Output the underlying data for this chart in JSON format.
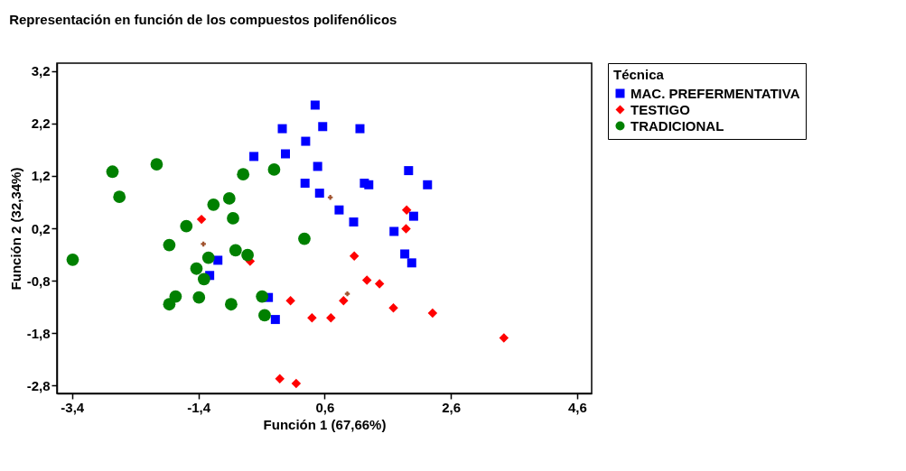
{
  "chart_data": {
    "type": "scatter",
    "title": "Representación en función de los compuestos polifenólicos",
    "xlabel": "Función 1 (67,66%)",
    "ylabel": "Función 2 (32,34%)",
    "legend_title": "Técnica",
    "legend": "right",
    "grid": false,
    "xlim": [
      -3.64,
      4.83
    ],
    "ylim": [
      -2.95,
      3.35
    ],
    "xticks": [
      {
        "value": -3.4,
        "label": "-3,4"
      },
      {
        "value": -1.4,
        "label": "-1,4"
      },
      {
        "value": 0.6,
        "label": "0,6"
      },
      {
        "value": 2.6,
        "label": "2,6"
      },
      {
        "value": 4.6,
        "label": "4,6"
      }
    ],
    "yticks": [
      {
        "value": -2.8,
        "label": "-2,8"
      },
      {
        "value": -1.8,
        "label": "-1,8"
      },
      {
        "value": -0.8,
        "label": "-0,8"
      },
      {
        "value": 0.2,
        "label": "0,2"
      },
      {
        "value": 1.2,
        "label": "1,2"
      },
      {
        "value": 2.2,
        "label": "2,2"
      },
      {
        "value": 3.2,
        "label": "3,2"
      }
    ],
    "series": [
      {
        "name": "MAC. PREFERMENTATIVA",
        "color": "#0000ff",
        "marker": "square",
        "x": [
          0.45,
          -0.07,
          0.57,
          1.16,
          0.3,
          -0.02,
          -0.52,
          0.49,
          0.29,
          1.23,
          1.3,
          0.52,
          1.93,
          2.23,
          0.83,
          1.06,
          1.7,
          2.01,
          1.87,
          1.98,
          -1.09,
          -1.22,
          -0.29,
          -0.18
        ],
        "values": [
          2.55,
          2.1,
          2.14,
          2.1,
          1.86,
          1.62,
          1.57,
          1.38,
          1.06,
          1.06,
          1.03,
          0.87,
          1.3,
          1.03,
          0.55,
          0.32,
          0.14,
          0.43,
          -0.29,
          -0.46,
          -0.41,
          -0.7,
          -1.12,
          -1.54
        ]
      },
      {
        "name": "TESTIGO",
        "color": "#ff0000",
        "marker": "diamond",
        "x": [
          -1.35,
          1.9,
          1.89,
          -0.58,
          0.06,
          0.4,
          -0.11,
          0.15,
          1.07,
          1.27,
          1.47,
          0.9,
          1.69,
          0.7,
          2.31,
          3.44
        ],
        "values": [
          0.37,
          0.55,
          0.19,
          -0.43,
          -1.18,
          -1.51,
          -2.67,
          -2.76,
          -0.33,
          -0.79,
          -0.86,
          -1.18,
          -1.32,
          -1.51,
          -1.42,
          -1.89
        ]
      },
      {
        "name": "TRADICIONAL",
        "color": "#008000",
        "marker": "circle",
        "x": [
          -2.76,
          -2.06,
          -2.65,
          -0.69,
          -0.2,
          -1.16,
          -0.91,
          -0.85,
          -1.59,
          0.28,
          -1.86,
          -3.39,
          -1.24,
          -0.81,
          -0.62,
          -1.43,
          -1.31,
          -1.76,
          -1.86,
          -1.39,
          -0.88,
          -0.39,
          -0.35
        ],
        "values": [
          1.28,
          1.42,
          0.8,
          1.23,
          1.32,
          0.65,
          0.77,
          0.39,
          0.24,
          0.0,
          -0.12,
          -0.4,
          -0.36,
          -0.22,
          -0.31,
          -0.57,
          -0.77,
          -1.1,
          -1.25,
          -1.12,
          -1.25,
          -1.1,
          -1.46
        ]
      },
      {
        "color": "#a0522d",
        "marker": "cross",
        "x": [
          0.69,
          -1.32,
          0.96
        ],
        "values": [
          0.79,
          -0.1,
          -1.05
        ]
      }
    ]
  }
}
